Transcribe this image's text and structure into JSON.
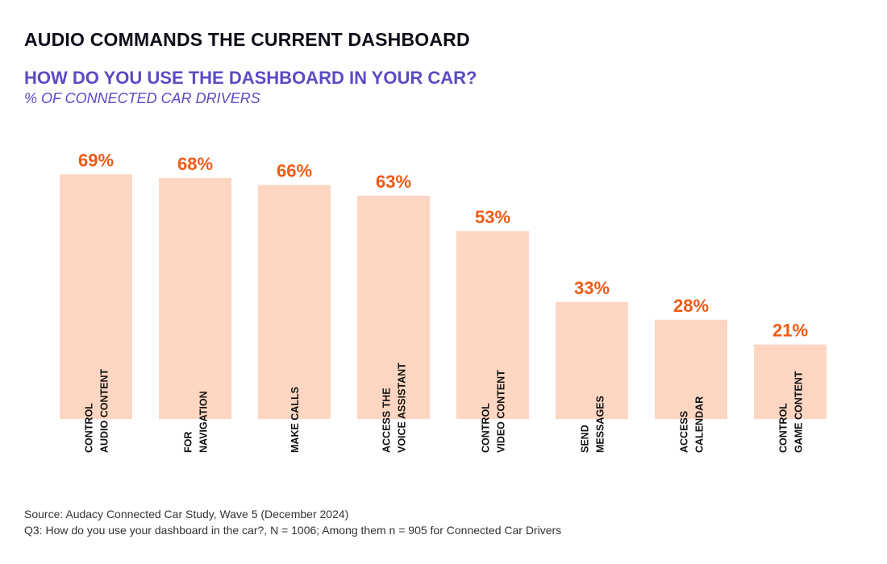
{
  "header": {
    "title": "AUDIO COMMANDS THE CURRENT DASHBOARD",
    "subtitle": "HOW DO YOU USE THE DASHBOARD IN YOUR CAR?",
    "caption": "% OF CONNECTED CAR DRIVERS"
  },
  "footer": {
    "source": "Source: Audacy Connected Car Study, Wave 5 (December 2024)",
    "note": "Q3: How do you use your dashboard in the car?, N = 1006; Among them n = 905 for Connected Car Drivers"
  },
  "colors": {
    "bar": "#ffd6c2",
    "value_label": "#ef5a14",
    "subtitle": "#5b4bc4"
  },
  "chart_data": {
    "type": "bar",
    "title": "HOW DO YOU USE THE DASHBOARD IN YOUR CAR?",
    "ylabel": "% OF CONNECTED CAR DRIVERS",
    "xlabel": "",
    "ylim": [
      0,
      100
    ],
    "unit": "%",
    "categories": [
      [
        "CONTROL",
        "AUDIO CONTENT"
      ],
      [
        "FOR",
        "NAVIGATION"
      ],
      [
        "MAKE CALLS"
      ],
      [
        "ACCESS THE",
        "VOICE ASSISTANT"
      ],
      [
        "CONTROL",
        "VIDEO CONTENT"
      ],
      [
        "SEND",
        "MESSAGES"
      ],
      [
        "ACCESS",
        "CALENDAR"
      ],
      [
        "CONTROL",
        "GAME CONTENT"
      ]
    ],
    "values": [
      69,
      68,
      66,
      63,
      53,
      33,
      28,
      21
    ],
    "value_labels": [
      "69%",
      "68%",
      "66%",
      "63%",
      "53%",
      "33%",
      "28%",
      "21%"
    ]
  }
}
